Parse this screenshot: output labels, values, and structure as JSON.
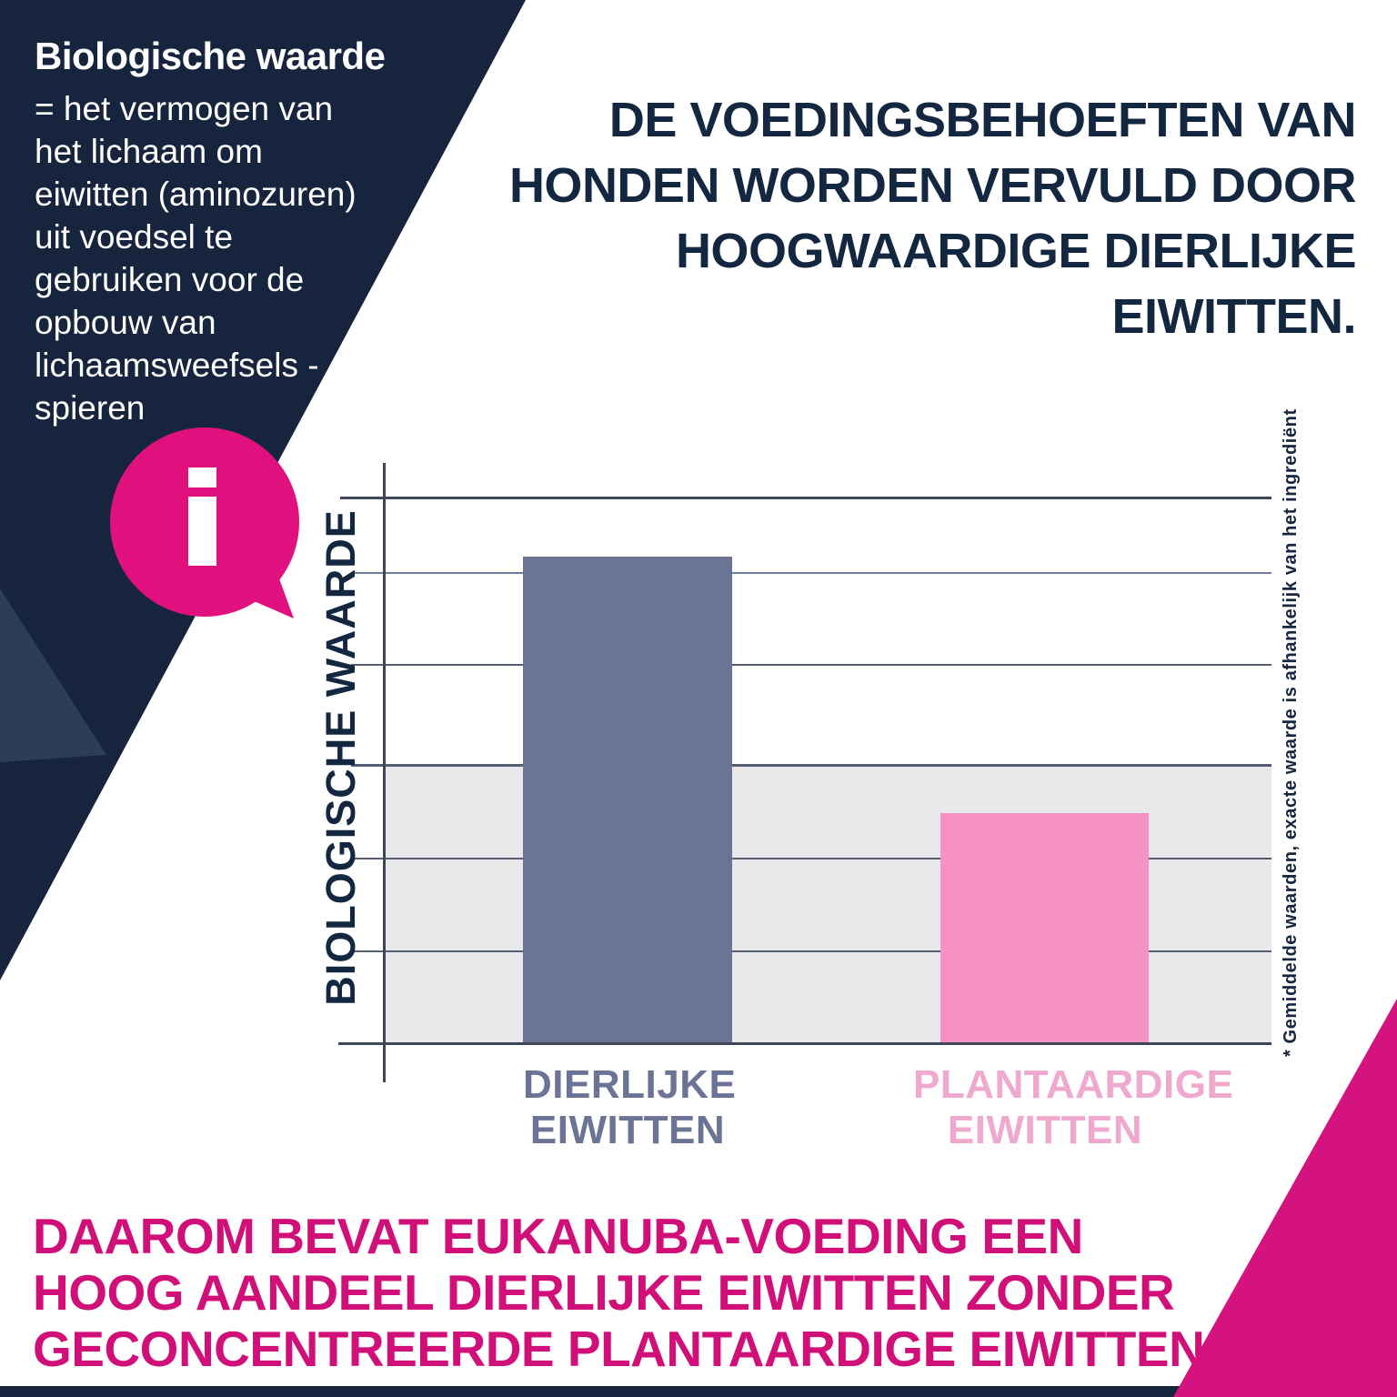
{
  "info_panel": {
    "title": "Biologische waarde",
    "body_lines": [
      "= het vermogen van",
      "het lichaam om",
      "eiwitten (aminozuren)",
      "uit voedsel te",
      "gebruiken voor de",
      "opbouw van",
      "lichaamsweefsels -",
      "spieren"
    ]
  },
  "headline": {
    "lines": [
      "DE VOEDINGSBEHOEFTEN VAN",
      "HONDEN WORDEN VERVULD DOOR",
      "HOOGWAARDIGE DIERLIJKE",
      "EIWITTEN."
    ]
  },
  "chart": {
    "y_axis_label": "BIOLOGISCHE WAARDE",
    "footnote": "* Gemiddelde waarden, exacte waarde is afhankelijk van het ingrediënt",
    "bar_labels": [
      [
        "DIERLIJKE",
        "EIWITTEN"
      ],
      [
        "PLANTAARDIGE",
        "EIWITTEN"
      ]
    ]
  },
  "chart_data": {
    "type": "bar",
    "categories": [
      "DIERLIJKE EIWITTEN",
      "PLANTAARDIGE EIWITTEN"
    ],
    "values": [
      89,
      42
    ],
    "title": "",
    "xlabel": "",
    "ylabel": "BIOLOGISCHE WAARDE",
    "ylim": [
      0,
      100
    ],
    "value_labels_shown": false,
    "grid": true,
    "gridline_levels": [
      100,
      86,
      69,
      51,
      34,
      17,
      0
    ],
    "shaded_band": [
      0,
      51
    ],
    "bar_colors": [
      "#6c7496",
      "#f591c4"
    ],
    "footnote": "* Gemiddelde waarden, exacte waarde is afhankelijk van het ingrediënt"
  },
  "conclusion": {
    "lines": [
      "DAAROM BEVAT EUKANUBA-VOEDING EEN",
      "HOOG AANDEEL DIERLIJKE EIWITTEN ZONDER",
      "GECONCENTREERDE PLANTAARDIGE EIWITTEN."
    ]
  },
  "colors": {
    "navy": "#17243d",
    "navy_facet": "#2c3e57",
    "magenta_bubble": "#e0117f",
    "magenta_wedge": "#d4137f",
    "magenta_text": "#d01078",
    "headline_navy": "#132840",
    "bar_animal": "#6c7496",
    "bar_plant": "#f591c4",
    "label_animal": "#6b7495",
    "label_plant": "#f0a9ce",
    "gray_band": "#e9e9ec"
  }
}
